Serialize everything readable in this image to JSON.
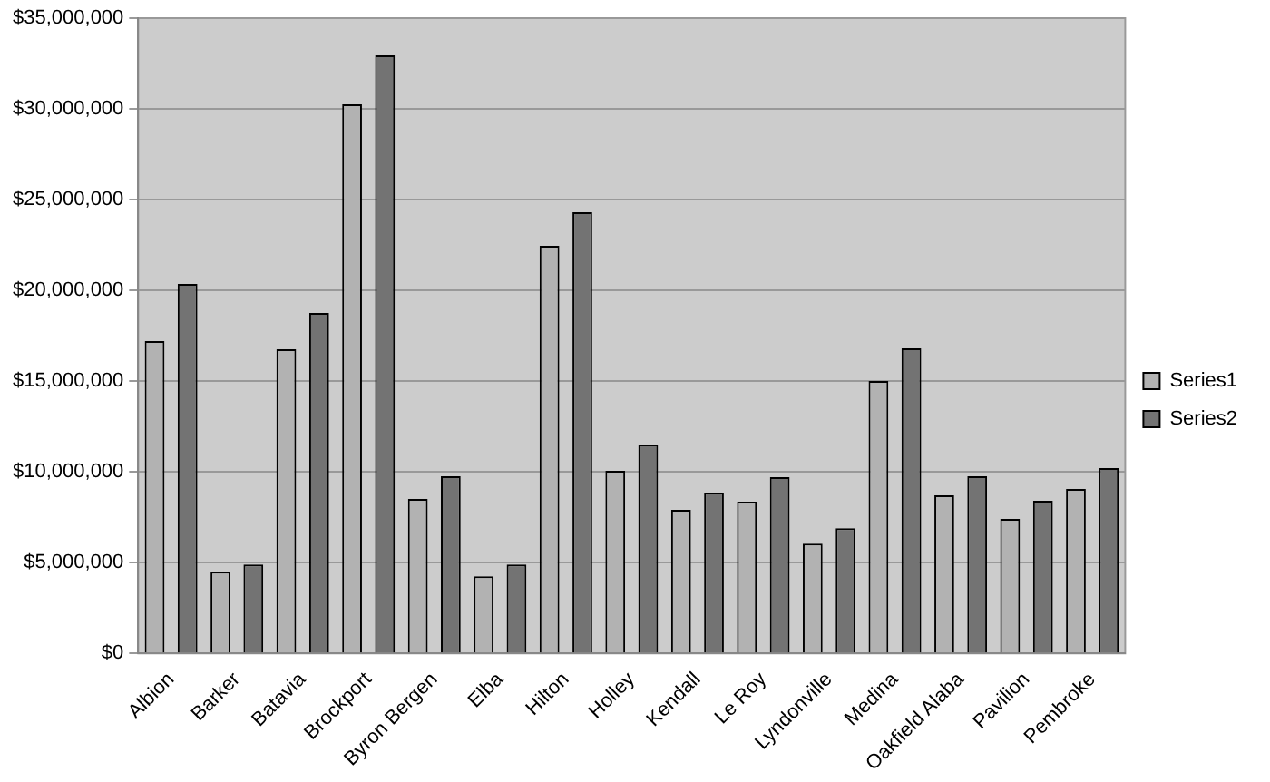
{
  "chart_data": {
    "type": "bar",
    "categories": [
      "Albion",
      "Barker",
      "Batavia",
      "Brockport",
      "Byron Bergen",
      "Elba",
      "Hilton",
      "Holley",
      "Kendall",
      "Le Roy",
      "Lyndonville",
      "Medina",
      "Oakfield Alaba",
      "Pavilion",
      "Pembroke"
    ],
    "series": [
      {
        "name": "Series1",
        "color": "#b2b2b2",
        "values": [
          17200000,
          4500000,
          16750000,
          30250000,
          8500000,
          4250000,
          22450000,
          10050000,
          7900000,
          8350000,
          6050000,
          15000000,
          8700000,
          7400000,
          9050000
        ]
      },
      {
        "name": "Series2",
        "color": "#737373",
        "values": [
          20350000,
          4900000,
          18750000,
          32950000,
          9750000,
          4900000,
          24300000,
          11500000,
          8850000,
          9700000,
          6900000,
          16800000,
          9750000,
          8400000,
          10200000
        ]
      }
    ],
    "ylim": [
      0,
      35000000
    ],
    "yticks": [
      {
        "value": 0,
        "label": "$0"
      },
      {
        "value": 5000000,
        "label": "$5,000,000"
      },
      {
        "value": 10000000,
        "label": "$10,000,000"
      },
      {
        "value": 15000000,
        "label": "$15,000,000"
      },
      {
        "value": 20000000,
        "label": "$20,000,000"
      },
      {
        "value": 25000000,
        "label": "$25,000,000"
      },
      {
        "value": 30000000,
        "label": "$30,000,000"
      },
      {
        "value": 35000000,
        "label": "$35,000,000"
      }
    ],
    "grid": "y",
    "legend": "right"
  }
}
